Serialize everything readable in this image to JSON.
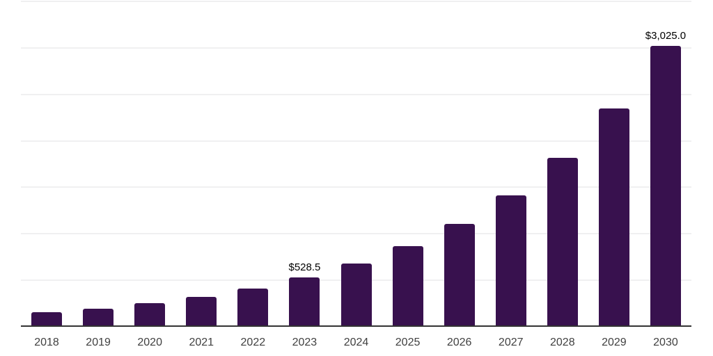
{
  "chart_data": {
    "type": "bar",
    "title": "",
    "xlabel": "",
    "ylabel": "",
    "categories": [
      "2018",
      "2019",
      "2020",
      "2021",
      "2022",
      "2023",
      "2024",
      "2025",
      "2026",
      "2027",
      "2028",
      "2029",
      "2030"
    ],
    "values": [
      160.0,
      198.0,
      255.0,
      325.0,
      415.0,
      528.5,
      678.0,
      865.0,
      1105.0,
      1415.0,
      1820.0,
      2345.0,
      3025.0
    ],
    "labeled_points": [
      {
        "category": "2023",
        "value": 528.5,
        "label": "$528.5"
      },
      {
        "category": "2030",
        "value": 3025.0,
        "label": "$3,025.0"
      }
    ],
    "ylim": [
      0,
      3500
    ],
    "y_gridline_interval": 500,
    "y_tick_labels_visible": false,
    "grid": "horizontal",
    "legend": "none",
    "colors": {
      "bar": "#38114e",
      "gridline": "#f0f0f1",
      "axis_line": "#333333",
      "tick_label": "#404040",
      "data_label": "#000000",
      "background": "#ffffff"
    }
  }
}
